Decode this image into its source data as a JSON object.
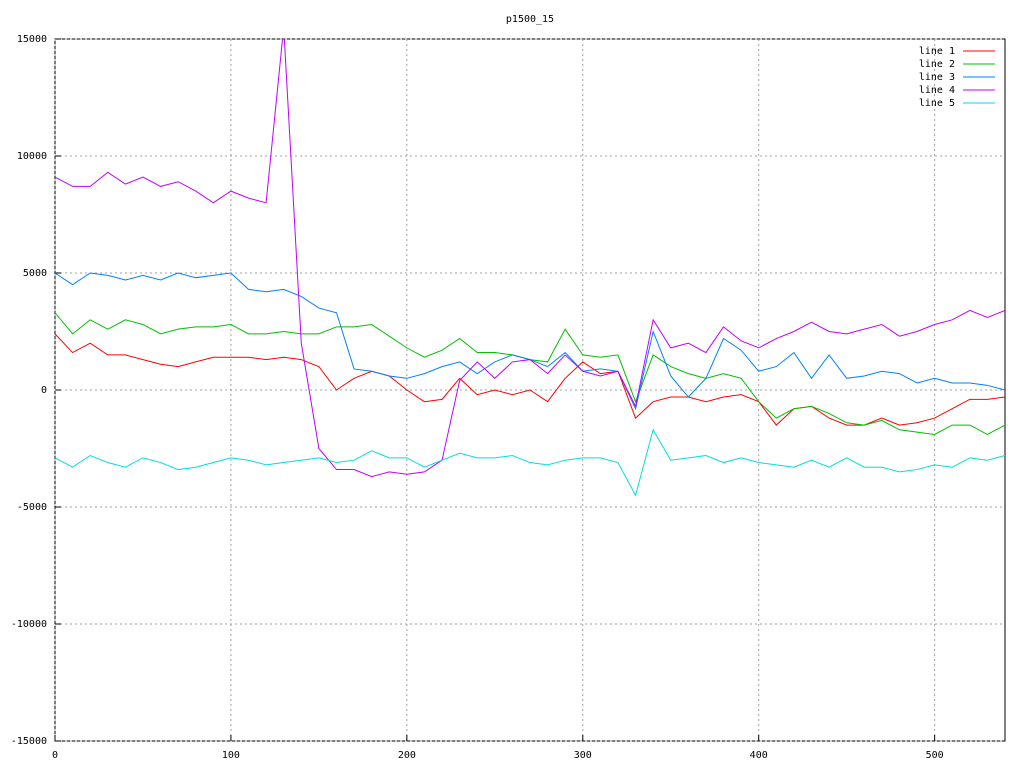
{
  "chart_data": {
    "type": "line",
    "title": "p1500_15",
    "x": [
      0,
      10,
      20,
      30,
      40,
      50,
      60,
      70,
      80,
      90,
      100,
      110,
      120,
      130,
      140,
      150,
      160,
      170,
      180,
      190,
      200,
      210,
      220,
      230,
      240,
      250,
      260,
      270,
      280,
      290,
      300,
      310,
      320,
      330,
      340,
      350,
      360,
      370,
      380,
      390,
      400,
      410,
      420,
      430,
      440,
      450,
      460,
      470,
      480,
      490,
      500,
      510,
      520,
      530,
      540
    ],
    "series": [
      {
        "name": "line 1",
        "color": "#ff0000",
        "values": [
          2400,
          1600,
          2000,
          1500,
          1500,
          1300,
          1100,
          1000,
          1200,
          1400,
          1400,
          1400,
          1300,
          1400,
          1300,
          1000,
          0,
          500,
          800,
          600,
          0,
          -500,
          -400,
          500,
          -200,
          0,
          -200,
          0,
          -500,
          500,
          1200,
          700,
          800,
          -1200,
          -500,
          -300,
          -300,
          -500,
          -300,
          -200,
          -500,
          -1500,
          -800,
          -700,
          -1200,
          -1500,
          -1500,
          -1200,
          -1500,
          -1400,
          -1200,
          -800,
          -400,
          -400,
          -300
        ]
      },
      {
        "name": "line 2",
        "color": "#00c000",
        "values": [
          3300,
          2400,
          3000,
          2600,
          3000,
          2800,
          2400,
          2600,
          2700,
          2700,
          2800,
          2400,
          2400,
          2500,
          2400,
          2400,
          2700,
          2700,
          2800,
          2300,
          1800,
          1400,
          1700,
          2200,
          1600,
          1600,
          1500,
          1300,
          1200,
          2600,
          1500,
          1400,
          1500,
          -500,
          1500,
          1000,
          700,
          500,
          700,
          500,
          -500,
          -1200,
          -800,
          -700,
          -1000,
          -1400,
          -1500,
          -1300,
          -1700,
          -1800,
          -1900,
          -1500,
          -1500,
          -1900,
          -1500
        ]
      },
      {
        "name": "line 3",
        "color": "#0080ff",
        "values": [
          5000,
          4500,
          5000,
          4900,
          4700,
          4900,
          4700,
          5000,
          4800,
          4900,
          5000,
          4300,
          4200,
          4300,
          4000,
          3500,
          3300,
          900,
          800,
          600,
          500,
          700,
          1000,
          1200,
          700,
          1200,
          1500,
          1300,
          1000,
          1600,
          800,
          900,
          800,
          -800,
          2500,
          600,
          -300,
          500,
          2200,
          1700,
          800,
          1000,
          1600,
          500,
          1500,
          500,
          600,
          800,
          700,
          300,
          500,
          300,
          300,
          200,
          0
        ]
      },
      {
        "name": "line 4",
        "color": "#c000ff",
        "values": [
          9100,
          8700,
          8700,
          9300,
          8800,
          9100,
          8700,
          8900,
          8500,
          8000,
          8500,
          8200,
          8000,
          15500,
          2000,
          -2500,
          -3400,
          -3400,
          -3700,
          -3500,
          -3600,
          -3500,
          -3000,
          400,
          1200,
          500,
          1200,
          1300,
          700,
          1500,
          800,
          600,
          800,
          -700,
          3000,
          1800,
          2000,
          1600,
          2700,
          2100,
          1800,
          2200,
          2500,
          2900,
          2500,
          2400,
          2600,
          2800,
          2300,
          2500,
          2800,
          3000,
          3400,
          3100,
          3400
        ]
      },
      {
        "name": "line 5",
        "color": "#00dddd",
        "values": [
          -2900,
          -3300,
          -2800,
          -3100,
          -3300,
          -2900,
          -3100,
          -3400,
          -3300,
          -3100,
          -2900,
          -3000,
          -3200,
          -3100,
          -3000,
          -2900,
          -3100,
          -3000,
          -2600,
          -2900,
          -2900,
          -3300,
          -3000,
          -2700,
          -2900,
          -2900,
          -2800,
          -3100,
          -3200,
          -3000,
          -2900,
          -2900,
          -3100,
          -4500,
          -1700,
          -3000,
          -2900,
          -2800,
          -3100,
          -2900,
          -3100,
          -3200,
          -3300,
          -3000,
          -3300,
          -2900,
          -3300,
          -3300,
          -3500,
          -3400,
          -3200,
          -3300,
          -2900,
          -3000,
          -2800
        ]
      }
    ],
    "xlim": [
      0,
      540
    ],
    "xticks": [
      0,
      100,
      200,
      300,
      400,
      500
    ],
    "ylim": [
      -15000,
      15000
    ],
    "yticks": [
      -15000,
      -10000,
      -5000,
      0,
      5000,
      10000,
      15000
    ],
    "grid": true,
    "legend": "top-right"
  }
}
